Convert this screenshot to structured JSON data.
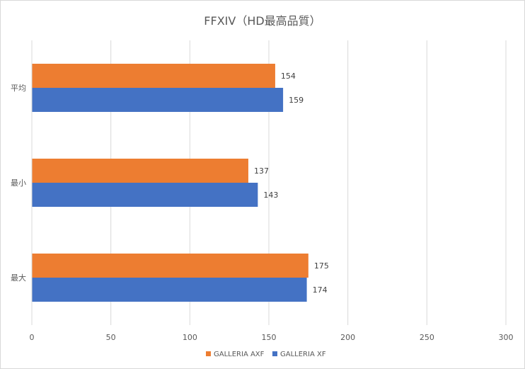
{
  "chart_data": {
    "type": "bar",
    "orientation": "horizontal",
    "title": "FFXIV（HD最高品質）",
    "categories": [
      "平均",
      "最小",
      "最大"
    ],
    "series": [
      {
        "name": "GALLERIA AXF",
        "color": "#ED7D31",
        "values": [
          154,
          137,
          175
        ]
      },
      {
        "name": "GALLERIA XF",
        "color": "#4472C4",
        "values": [
          159,
          143,
          174
        ]
      }
    ],
    "xlim": [
      0,
      300
    ],
    "xticks": [
      0,
      50,
      100,
      150,
      200,
      250,
      300
    ],
    "grid": true,
    "legend": "bottom",
    "data_labels": true
  }
}
